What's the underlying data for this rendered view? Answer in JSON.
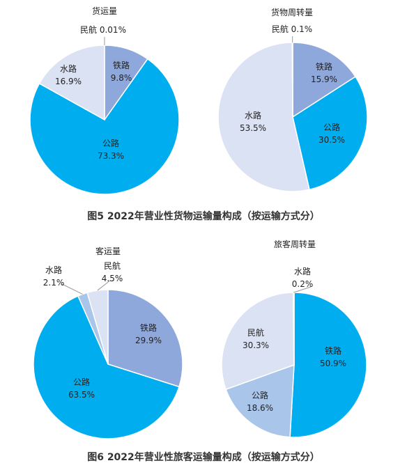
{
  "figures": [
    {
      "caption": "图5   2022年营业性货物运输量构成（按运输方式分）"
    },
    {
      "caption": "图6   2022年营业性旅客运输量构成（按运输方式分）"
    }
  ],
  "colors": {
    "rail": "#8fa8dc",
    "road": "#00aeef",
    "water": "#dbe2f3",
    "air": "#a9c5ea",
    "air_dark": "#9cbde6",
    "label": "#222222",
    "leader": "#999999"
  },
  "chart_data": [
    {
      "type": "pie",
      "title": "货运量",
      "slices": [
        {
          "name": "铁路",
          "value": 9.8,
          "label": "9.8%",
          "color": "#8fa8dc"
        },
        {
          "name": "公路",
          "value": 73.3,
          "label": "73.3%",
          "color": "#00aeef"
        },
        {
          "name": "水路",
          "value": 16.9,
          "label": "16.9%",
          "color": "#dbe2f3"
        },
        {
          "name": "民航",
          "value": 0.01,
          "label": "0.01%",
          "color": "#ffffff"
        }
      ]
    },
    {
      "type": "pie",
      "title": "货物周转量",
      "slices": [
        {
          "name": "铁路",
          "value": 15.9,
          "label": "15.9%",
          "color": "#8fa8dc"
        },
        {
          "name": "公路",
          "value": 30.5,
          "label": "30.5%",
          "color": "#00aeef"
        },
        {
          "name": "水路",
          "value": 53.5,
          "label": "53.5%",
          "color": "#dbe2f3"
        },
        {
          "name": "民航",
          "value": 0.1,
          "label": "0.1%",
          "color": "#ffffff"
        }
      ]
    },
    {
      "type": "pie",
      "title": "客运量",
      "slices": [
        {
          "name": "铁路",
          "value": 29.9,
          "label": "29.9%",
          "color": "#8fa8dc"
        },
        {
          "name": "公路",
          "value": 63.5,
          "label": "63.5%",
          "color": "#00aeef"
        },
        {
          "name": "水路",
          "value": 2.1,
          "label": "2.1%",
          "color": "#a9c5ea"
        },
        {
          "name": "民航",
          "value": 4.5,
          "label": "4.5%",
          "color": "#dbe2f3"
        }
      ]
    },
    {
      "type": "pie",
      "title": "旅客周转量",
      "slices": [
        {
          "name": "铁路",
          "value": 50.9,
          "label": "50.9%",
          "color": "#00aeef"
        },
        {
          "name": "公路",
          "value": 18.6,
          "label": "18.6%",
          "color": "#a9c5ea"
        },
        {
          "name": "水路",
          "value": 0.2,
          "label": "0.2%",
          "color": "#ffffff"
        },
        {
          "name": "民航",
          "value": 30.3,
          "label": "30.3%",
          "color": "#dbe2f3"
        }
      ]
    }
  ]
}
